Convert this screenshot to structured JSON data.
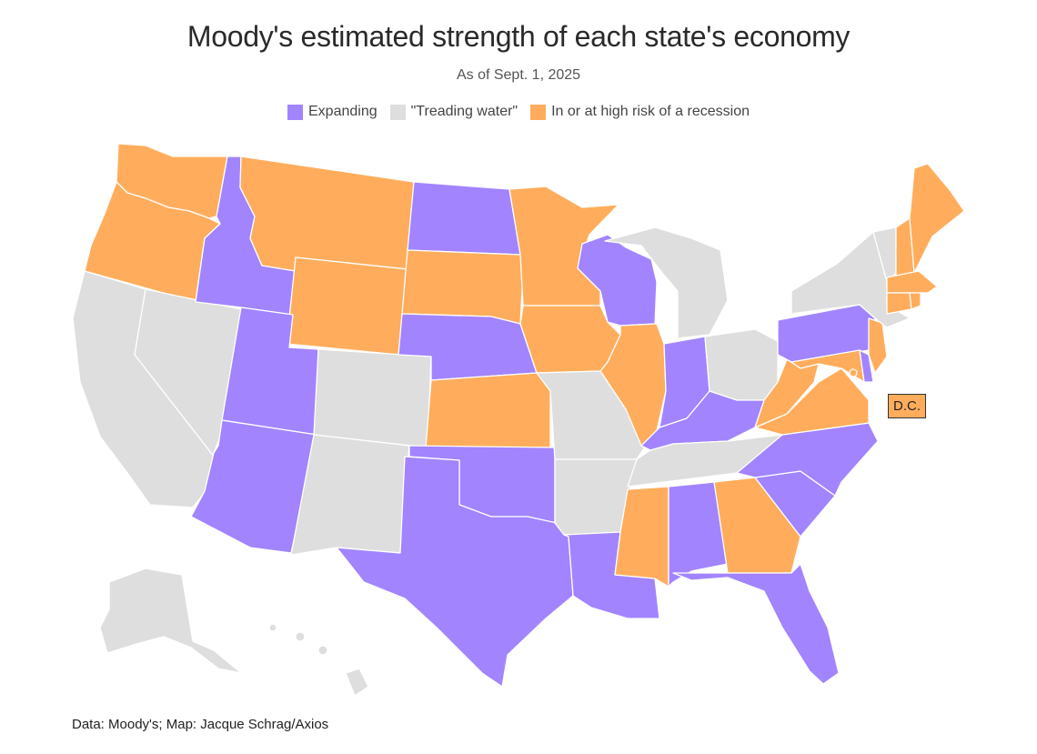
{
  "title": "Moody's estimated strength of each state's economy",
  "subtitle": "As of Sept. 1, 2025",
  "legend": [
    {
      "label": "Expanding",
      "color": "#a284ff"
    },
    {
      "label": "\"Treading water\"",
      "color": "#dedede"
    },
    {
      "label": "In or at high risk of a recession",
      "color": "#ffad5c"
    }
  ],
  "colors": {
    "expanding": "#a284ff",
    "treading": "#dedede",
    "recession": "#ffad5c"
  },
  "map_data": {
    "expanding": [
      "ID",
      "UT",
      "AZ",
      "ND",
      "NE",
      "OK",
      "TX",
      "LA",
      "WI",
      "IN",
      "KY",
      "PA",
      "AL",
      "NC",
      "SC",
      "FL",
      "DE"
    ],
    "treading_water": [
      "CA",
      "NV",
      "CO",
      "NM",
      "MO",
      "AR",
      "TN",
      "OH",
      "MI",
      "NY",
      "VT",
      "AK",
      "HI"
    ],
    "recession": [
      "WA",
      "OR",
      "MT",
      "WY",
      "SD",
      "MN",
      "IA",
      "KS",
      "IL",
      "MS",
      "GA",
      "VA",
      "WV",
      "MD",
      "NJ",
      "CT",
      "RI",
      "MA",
      "NH",
      "ME",
      "DC"
    ]
  },
  "dc_label": "D.C.",
  "source": "Data: Moody's; Map: Jacque Schrag/Axios"
}
